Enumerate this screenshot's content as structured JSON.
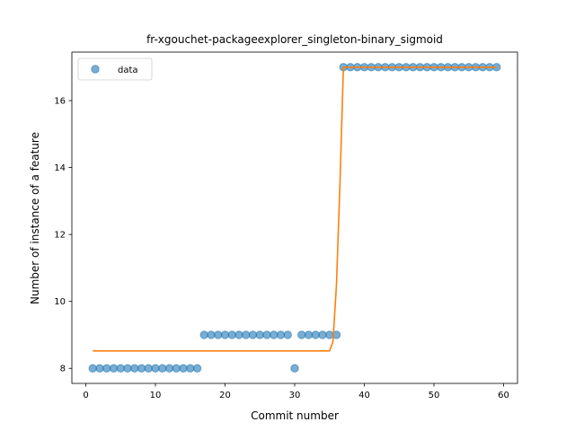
{
  "chart_data": {
    "type": "scatter",
    "title": "fr-xgouchet-packageexplorer_singleton-binary_sigmoid",
    "xlabel": "Commit number",
    "ylabel": "Number of instance of a feature",
    "xlim": [
      -2,
      62
    ],
    "ylim": [
      7.55,
      17.45
    ],
    "xticks": [
      0,
      10,
      20,
      30,
      40,
      50,
      60
    ],
    "yticks": [
      8,
      10,
      12,
      14,
      16
    ],
    "grid": false,
    "legend": {
      "placement": "top-left",
      "entries": [
        "data"
      ]
    },
    "colors": {
      "data": "#1f77b4",
      "fit": "#ff7f0e"
    },
    "series": [
      {
        "name": "data",
        "kind": "scatter",
        "x": [
          1,
          2,
          3,
          4,
          5,
          6,
          7,
          8,
          9,
          10,
          11,
          12,
          13,
          14,
          15,
          16,
          17,
          18,
          19,
          20,
          21,
          22,
          23,
          24,
          25,
          26,
          27,
          28,
          29,
          30,
          31,
          32,
          33,
          34,
          35,
          36,
          37,
          38,
          39,
          40,
          41,
          42,
          43,
          44,
          45,
          46,
          47,
          48,
          49,
          50,
          51,
          52,
          53,
          54,
          55,
          56,
          57,
          58,
          59
        ],
        "y": [
          8,
          8,
          8,
          8,
          8,
          8,
          8,
          8,
          8,
          8,
          8,
          8,
          8,
          8,
          8,
          8,
          9,
          9,
          9,
          9,
          9,
          9,
          9,
          9,
          9,
          9,
          9,
          9,
          9,
          8,
          9,
          9,
          9,
          9,
          9,
          9,
          17,
          17,
          17,
          17,
          17,
          17,
          17,
          17,
          17,
          17,
          17,
          17,
          17,
          17,
          17,
          17,
          17,
          17,
          17,
          17,
          17,
          17,
          17
        ]
      },
      {
        "kind": "line",
        "x": [
          1,
          35,
          35.5,
          36,
          36.5,
          37,
          59
        ],
        "y": [
          8.52,
          8.52,
          8.8,
          10.5,
          13.5,
          17.0,
          17.0
        ]
      }
    ]
  }
}
